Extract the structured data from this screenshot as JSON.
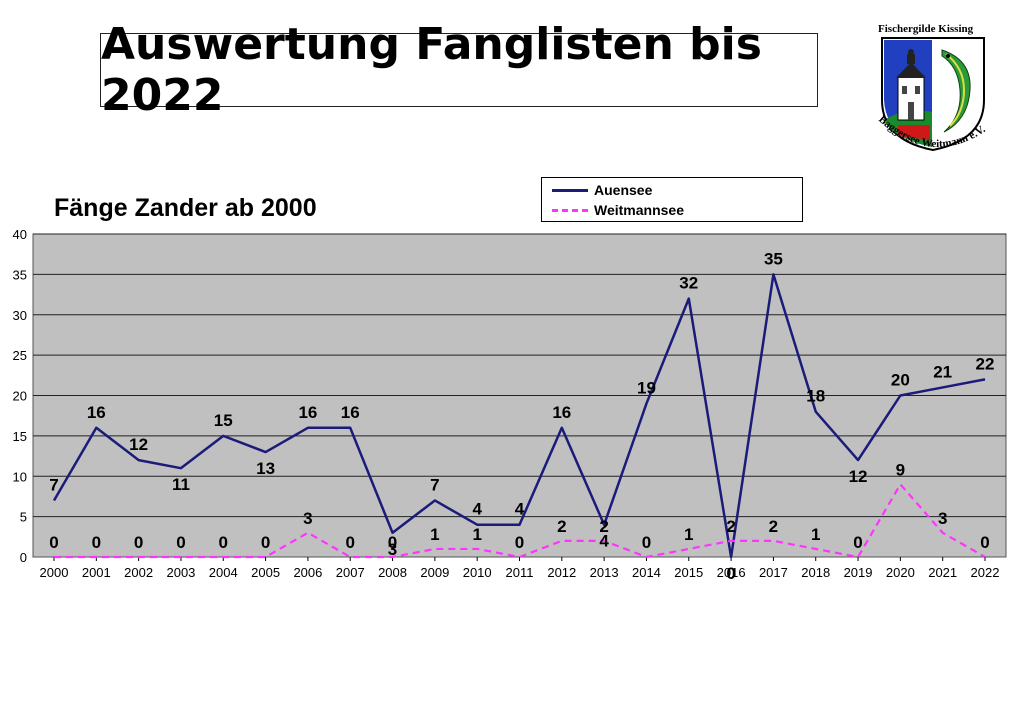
{
  "page": {
    "title": "Auswertung Fanglisten bis 2022",
    "logo": {
      "top_text": "Fischergilde Kissing",
      "bottom_text": "Baggersee Weitmann e.V."
    }
  },
  "chart_data": {
    "type": "line",
    "title": "Fänge Zander ab 2000",
    "xlabel": "",
    "ylabel": "",
    "categories": [
      "2000",
      "2001",
      "2002",
      "2003",
      "2004",
      "2005",
      "2006",
      "2007",
      "2008",
      "2009",
      "2010",
      "2011",
      "2012",
      "2013",
      "2014",
      "2015",
      "2016",
      "2017",
      "2018",
      "2019",
      "2020",
      "2021",
      "2022"
    ],
    "yticks": [
      0,
      5,
      10,
      15,
      20,
      25,
      30,
      35,
      40
    ],
    "ylim": [
      0,
      40
    ],
    "grid": true,
    "legend_position": "top-right",
    "series": [
      {
        "name": "Auensee",
        "color": "#1b1b7a",
        "style": "solid",
        "values": [
          7,
          16,
          12,
          11,
          15,
          13,
          16,
          16,
          3,
          7,
          4,
          4,
          16,
          4,
          19,
          32,
          0,
          35,
          18,
          12,
          20,
          21,
          22
        ]
      },
      {
        "name": "Weitmannsee",
        "color": "#ff33ff",
        "style": "dashed",
        "values": [
          0,
          0,
          0,
          0,
          0,
          0,
          3,
          0,
          0,
          1,
          1,
          0,
          2,
          2,
          0,
          1,
          2,
          2,
          1,
          0,
          9,
          3,
          0
        ]
      }
    ],
    "colors": {
      "plot_background": "#c0c0c0",
      "gridline": "#222222"
    }
  }
}
